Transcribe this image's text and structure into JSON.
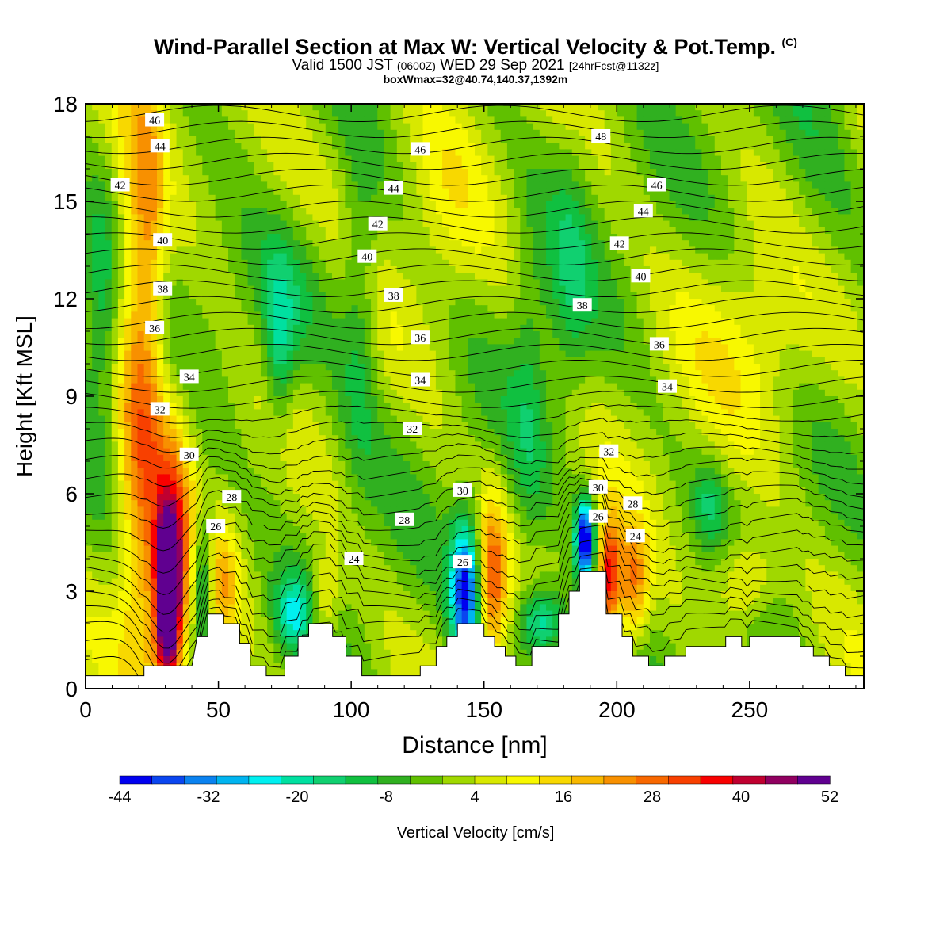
{
  "chart_data": {
    "type": "heatmap",
    "title": "Wind-Parallel Section at Max W: Vertical Velocity & Pot.Temp.",
    "copyright": "(C)",
    "subtitle_valid": "Valid 1500 JST",
    "subtitle_utc": "(0600Z)",
    "subtitle_date": "WED 29 Sep 2021",
    "subtitle_fcst": "[24hrFcst@1132z]",
    "subtitle2": "boxWmax=32@40.74,140.37,1392m",
    "xlabel": "Distance [nm]",
    "ylabel": "Height [Kft MSL]",
    "xlim": [
      0,
      293
    ],
    "ylim": [
      0,
      18
    ],
    "xticks": [
      0,
      50,
      100,
      150,
      200,
      250
    ],
    "yticks": [
      0,
      3,
      6,
      9,
      12,
      15,
      18
    ],
    "colorbar": {
      "label": "Vertical Velocity [cm/s]",
      "range": [
        -44,
        52
      ],
      "step": 4,
      "ticks": [
        -44,
        -32,
        -20,
        -8,
        4,
        16,
        28,
        40,
        52
      ],
      "colors": [
        "#0000f0",
        "#0a46f0",
        "#0a82f0",
        "#00b4f0",
        "#00f0f0",
        "#00e0a0",
        "#10d070",
        "#10c040",
        "#30b020",
        "#60c000",
        "#a0d800",
        "#d8e800",
        "#f8f800",
        "#f8d800",
        "#f8b800",
        "#f89000",
        "#f86800",
        "#f84000",
        "#f80000",
        "#c00030",
        "#900060",
        "#600090"
      ]
    },
    "terrain": [
      [
        0,
        0.4
      ],
      [
        22,
        0.4
      ],
      [
        22,
        0.7
      ],
      [
        40,
        0.7
      ],
      [
        42,
        1.6
      ],
      [
        46,
        1.6
      ],
      [
        46,
        2.3
      ],
      [
        52,
        2.3
      ],
      [
        52,
        2.0
      ],
      [
        58,
        2.0
      ],
      [
        58,
        1.4
      ],
      [
        62,
        1.4
      ],
      [
        62,
        0.7
      ],
      [
        68,
        0.7
      ],
      [
        68,
        0.4
      ],
      [
        75,
        0.4
      ],
      [
        75,
        1.0
      ],
      [
        80,
        1.0
      ],
      [
        80,
        1.6
      ],
      [
        84,
        1.6
      ],
      [
        84,
        2.0
      ],
      [
        93,
        2.0
      ],
      [
        93,
        1.6
      ],
      [
        98,
        1.6
      ],
      [
        98,
        1.0
      ],
      [
        104,
        1.0
      ],
      [
        104,
        0.4
      ],
      [
        126,
        0.4
      ],
      [
        126,
        0.7
      ],
      [
        132,
        0.7
      ],
      [
        132,
        1.3
      ],
      [
        136,
        1.3
      ],
      [
        136,
        1.6
      ],
      [
        140,
        1.6
      ],
      [
        140,
        2.0
      ],
      [
        150,
        2.0
      ],
      [
        150,
        1.6
      ],
      [
        154,
        1.6
      ],
      [
        154,
        1.3
      ],
      [
        158,
        1.3
      ],
      [
        158,
        1.0
      ],
      [
        162,
        1.0
      ],
      [
        162,
        0.7
      ],
      [
        168,
        0.7
      ],
      [
        168,
        1.3
      ],
      [
        178,
        1.3
      ],
      [
        178,
        2.3
      ],
      [
        182,
        2.3
      ],
      [
        182,
        3.0
      ],
      [
        186,
        3.0
      ],
      [
        186,
        3.6
      ],
      [
        196,
        3.6
      ],
      [
        196,
        2.3
      ],
      [
        202,
        2.3
      ],
      [
        202,
        1.6
      ],
      [
        206,
        1.6
      ],
      [
        206,
        1.0
      ],
      [
        212,
        1.0
      ],
      [
        212,
        0.7
      ],
      [
        218,
        0.7
      ],
      [
        218,
        1.0
      ],
      [
        226,
        1.0
      ],
      [
        226,
        1.3
      ],
      [
        241,
        1.3
      ],
      [
        241,
        1.6
      ],
      [
        247,
        1.6
      ],
      [
        247,
        1.3
      ],
      [
        250,
        1.3
      ],
      [
        250,
        1.6
      ],
      [
        269,
        1.6
      ],
      [
        269,
        1.3
      ],
      [
        274,
        1.3
      ],
      [
        274,
        1.0
      ],
      [
        280,
        1.0
      ],
      [
        280,
        0.7
      ],
      [
        286,
        0.7
      ],
      [
        286,
        0.4
      ],
      [
        293,
        0.4
      ]
    ],
    "contour_labels": [
      {
        "text": "46",
        "x": 26,
        "y": 17.5
      },
      {
        "text": "44",
        "x": 28,
        "y": 16.7
      },
      {
        "text": "42",
        "x": 13,
        "y": 15.5
      },
      {
        "text": "40",
        "x": 29,
        "y": 13.8
      },
      {
        "text": "38",
        "x": 29,
        "y": 12.3
      },
      {
        "text": "36",
        "x": 26,
        "y": 11.1
      },
      {
        "text": "34",
        "x": 39,
        "y": 9.6
      },
      {
        "text": "32",
        "x": 28,
        "y": 8.6
      },
      {
        "text": "30",
        "x": 39,
        "y": 7.2
      },
      {
        "text": "28",
        "x": 55,
        "y": 5.9
      },
      {
        "text": "26",
        "x": 49,
        "y": 5.0
      },
      {
        "text": "24",
        "x": 101,
        "y": 4.0
      },
      {
        "text": "28",
        "x": 120,
        "y": 5.2
      },
      {
        "text": "30",
        "x": 142,
        "y": 6.1
      },
      {
        "text": "26",
        "x": 142,
        "y": 3.9
      },
      {
        "text": "32",
        "x": 123,
        "y": 8.0
      },
      {
        "text": "34",
        "x": 126,
        "y": 9.5
      },
      {
        "text": "36",
        "x": 126,
        "y": 10.8
      },
      {
        "text": "38",
        "x": 116,
        "y": 12.1
      },
      {
        "text": "40",
        "x": 106,
        "y": 13.3
      },
      {
        "text": "42",
        "x": 110,
        "y": 14.3
      },
      {
        "text": "44",
        "x": 116,
        "y": 15.4
      },
      {
        "text": "46",
        "x": 126,
        "y": 16.6
      },
      {
        "text": "48",
        "x": 194,
        "y": 17.0
      },
      {
        "text": "46",
        "x": 215,
        "y": 15.5
      },
      {
        "text": "44",
        "x": 210,
        "y": 14.7
      },
      {
        "text": "42",
        "x": 201,
        "y": 13.7
      },
      {
        "text": "40",
        "x": 209,
        "y": 12.7
      },
      {
        "text": "38",
        "x": 187,
        "y": 11.8
      },
      {
        "text": "36",
        "x": 216,
        "y": 10.6
      },
      {
        "text": "34",
        "x": 219,
        "y": 9.3
      },
      {
        "text": "32",
        "x": 197,
        "y": 7.3
      },
      {
        "text": "30",
        "x": 193,
        "y": 6.2
      },
      {
        "text": "28",
        "x": 206,
        "y": 5.7
      },
      {
        "text": "26",
        "x": 193,
        "y": 5.3
      },
      {
        "text": "24",
        "x": 207,
        "y": 4.7
      }
    ],
    "features": [
      {
        "x": 31,
        "y": 2.7,
        "sx": 3,
        "sy": 1.6,
        "w": 52
      },
      {
        "x": 32,
        "y": 4.0,
        "sx": 6,
        "sy": 3.2,
        "w": 28
      },
      {
        "x": 19,
        "y": 9.0,
        "sx": 5,
        "sy": 6,
        "w": 20
      },
      {
        "x": 25,
        "y": 13.0,
        "sx": 4,
        "sy": 5,
        "w": 12
      },
      {
        "x": 44,
        "y": 3.5,
        "sx": 3,
        "sy": 1.6,
        "w": -20
      },
      {
        "x": 52,
        "y": 3.2,
        "sx": 4,
        "sy": 1.2,
        "w": 14
      },
      {
        "x": 78,
        "y": 2.3,
        "sx": 5,
        "sy": 0.8,
        "w": -18
      },
      {
        "x": 90,
        "y": 2.6,
        "sx": 4,
        "sy": 1.0,
        "w": 12
      },
      {
        "x": 143,
        "y": 3.0,
        "sx": 4,
        "sy": 1.6,
        "w": -38
      },
      {
        "x": 153,
        "y": 3.3,
        "sx": 4,
        "sy": 1.8,
        "w": 24
      },
      {
        "x": 172,
        "y": 2.0,
        "sx": 7,
        "sy": 0.8,
        "w": -24
      },
      {
        "x": 188,
        "y": 4.6,
        "sx": 2.5,
        "sy": 0.9,
        "w": -44
      },
      {
        "x": 197,
        "y": 3.4,
        "sx": 3,
        "sy": 1.3,
        "w": 34
      },
      {
        "x": 206,
        "y": 3.2,
        "sx": 4,
        "sy": 1.3,
        "w": 22
      },
      {
        "x": 248,
        "y": 3.3,
        "sx": 8,
        "sy": 1.0,
        "w": 14
      },
      {
        "x": 72,
        "y": 15.6,
        "sx": 18,
        "sy": 2.0,
        "w": 6
      },
      {
        "x": 73,
        "y": 10.4,
        "sx": 4,
        "sy": 1.8,
        "w": -14
      },
      {
        "x": 76,
        "y": 12.0,
        "sx": 15,
        "sy": 2.0,
        "w": -8
      },
      {
        "x": 103,
        "y": 11.5,
        "sx": 5,
        "sy": 3.5,
        "w": -10
      },
      {
        "x": 167,
        "y": 9.0,
        "sx": 5,
        "sy": 4.0,
        "w": -8
      },
      {
        "x": 182,
        "y": 12.5,
        "sx": 6,
        "sy": 3.0,
        "w": -9
      },
      {
        "x": 258,
        "y": 10.5,
        "sx": 22,
        "sy": 2.2,
        "w": 8
      },
      {
        "x": 275,
        "y": 15.0,
        "sx": 12,
        "sy": 4.0,
        "w": -6
      },
      {
        "x": 5,
        "y": 12.0,
        "sx": 5,
        "sy": 2.5,
        "w": -12
      },
      {
        "x": 135,
        "y": 14.5,
        "sx": 10,
        "sy": 3.0,
        "w": 5
      },
      {
        "x": 235,
        "y": 5.8,
        "sx": 4,
        "sy": 0.9,
        "w": -10
      }
    ]
  }
}
